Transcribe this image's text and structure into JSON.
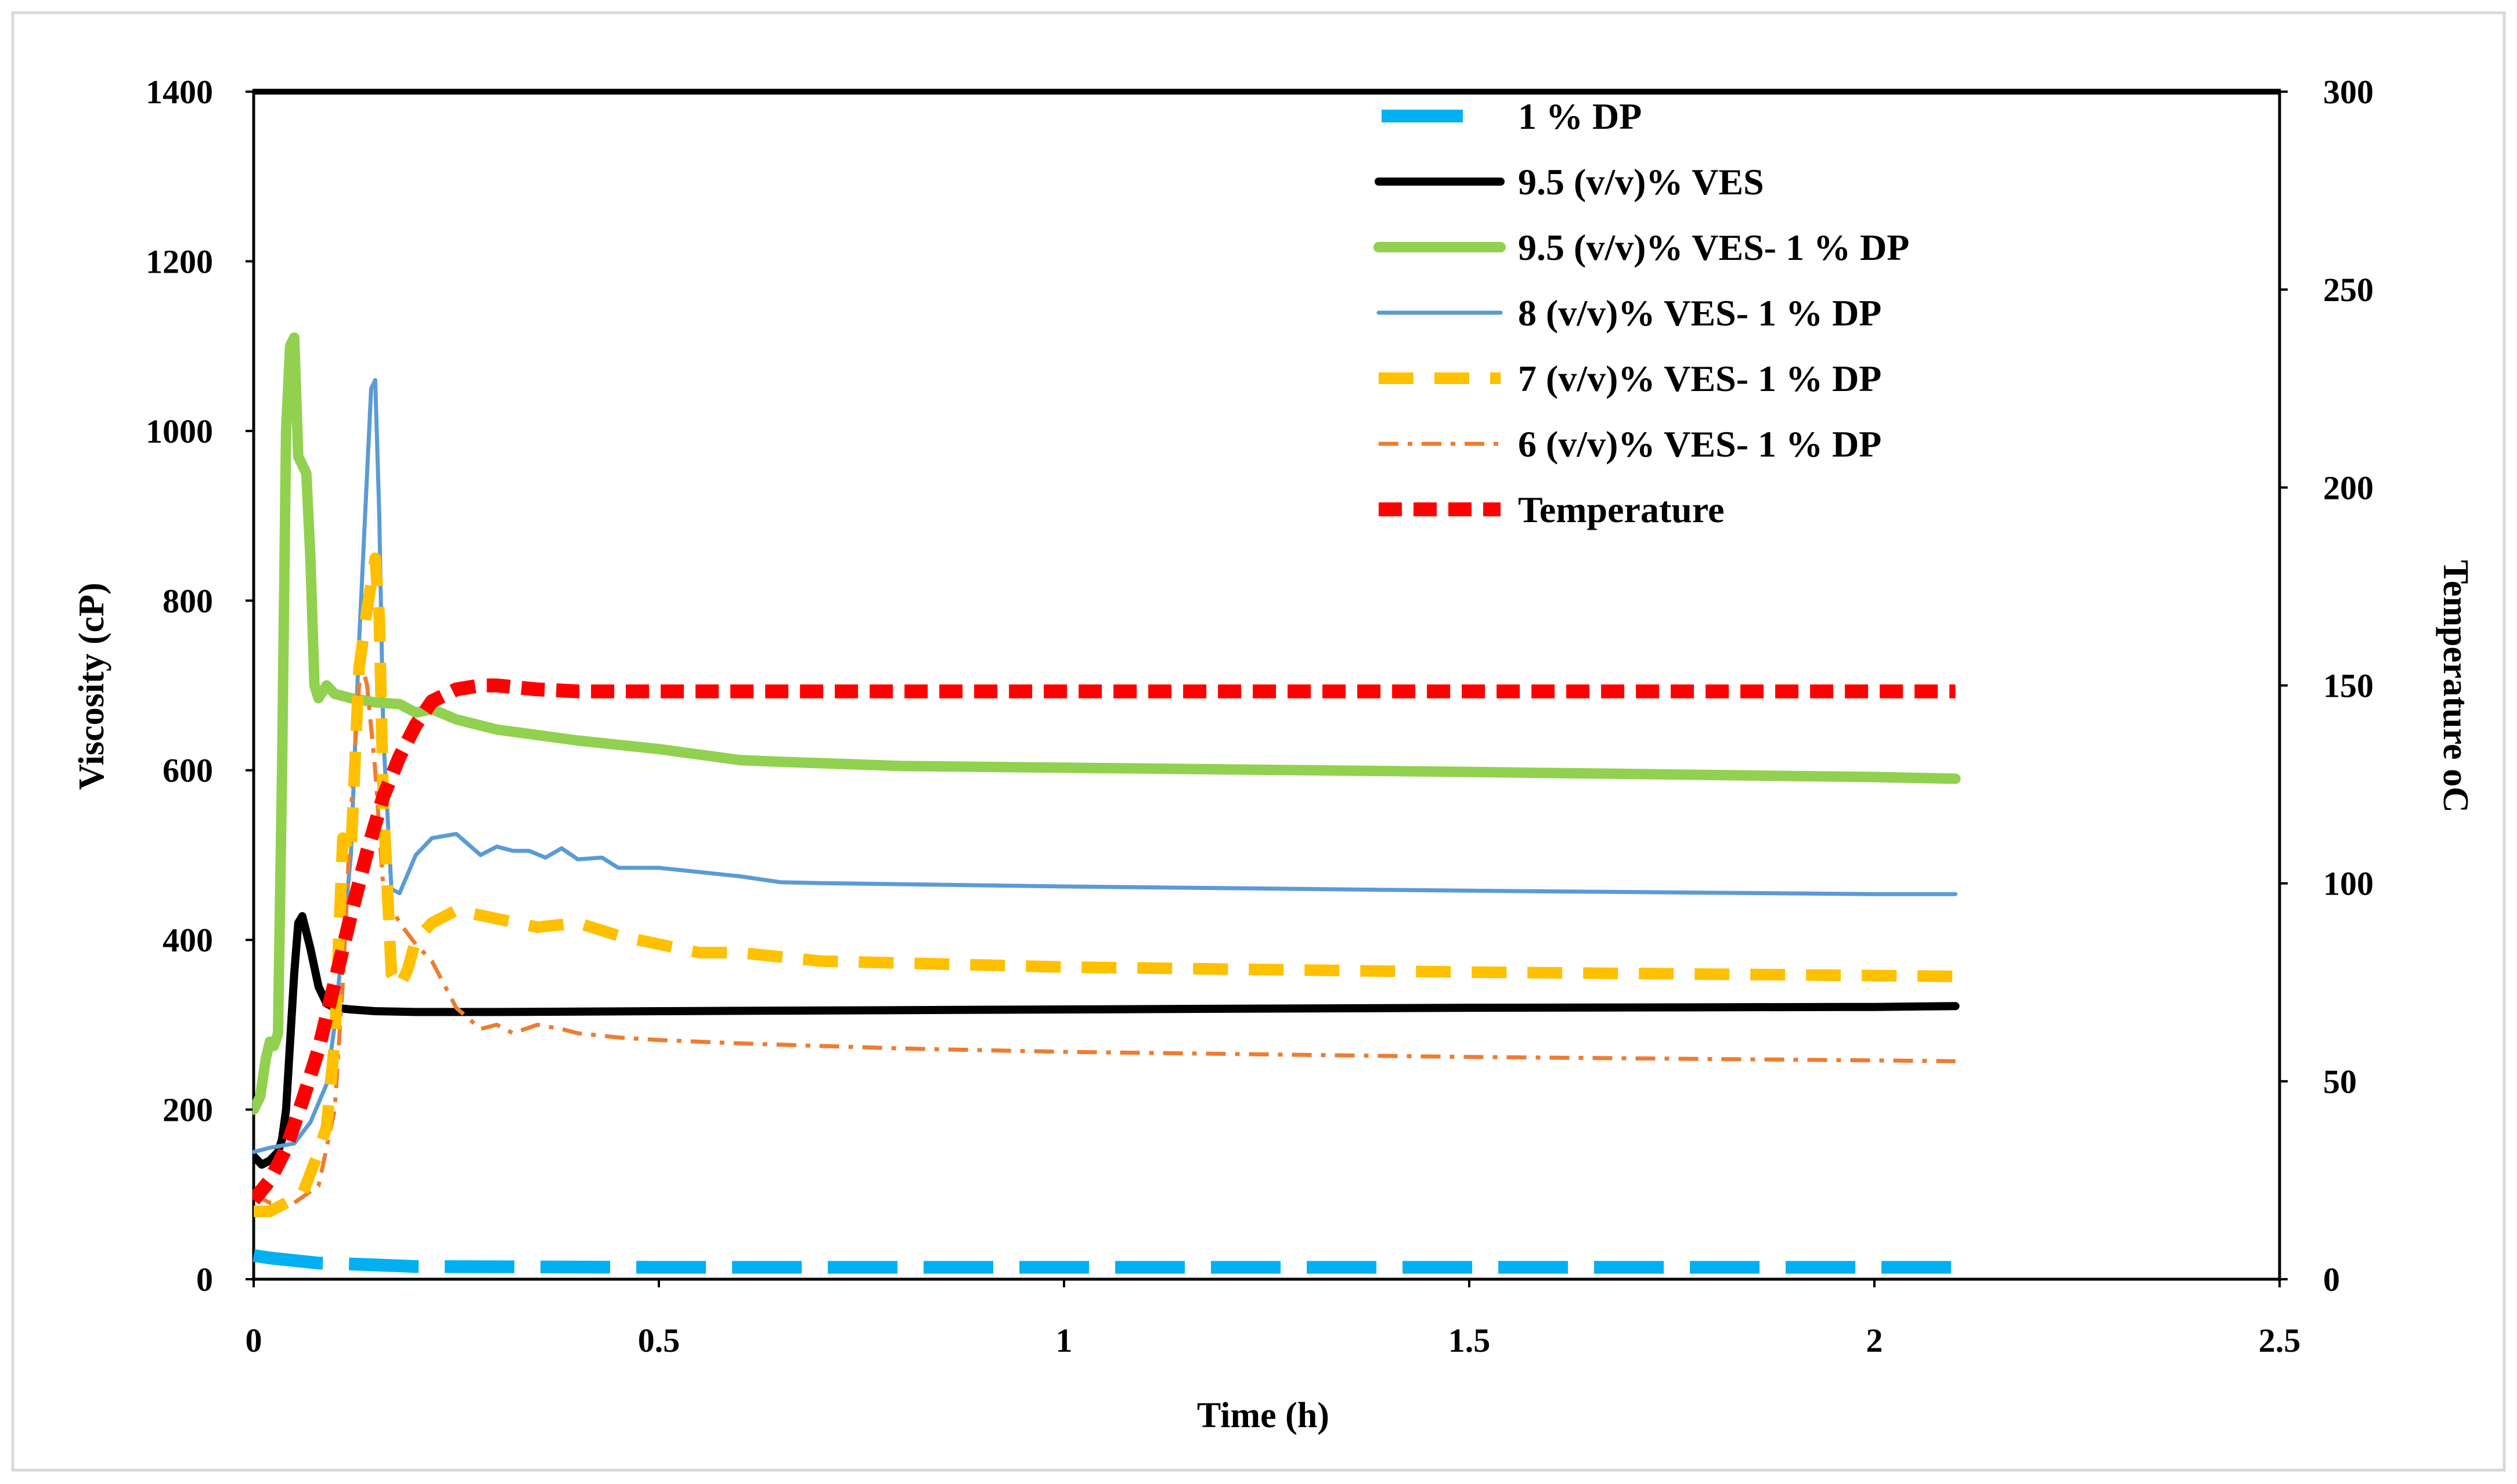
{
  "chart_data": {
    "type": "line",
    "title": "",
    "xlabel": "Time (h)",
    "ylabel": "Viscosity (cP)",
    "y2label": "Temperature oC",
    "xlim": [
      0,
      2.5
    ],
    "ylim": [
      0,
      1400
    ],
    "y2lim": [
      0,
      300
    ],
    "xticks": [
      "0",
      "0.5",
      "1",
      "1.5",
      "2",
      "2.5"
    ],
    "yticks": [
      "0",
      "200",
      "400",
      "600",
      "800",
      "1000",
      "1200",
      "1400"
    ],
    "y2ticks": [
      "0",
      "50",
      "100",
      "150",
      "200",
      "250",
      "300"
    ],
    "grid": false,
    "legend_position": "top-center",
    "series": [
      {
        "name": "1 % DP",
        "axis": "left",
        "color": "#00B0F0",
        "style": "long-dash",
        "x": [
          0,
          0.02,
          0.05,
          0.08,
          0.12,
          0.2,
          0.5,
          1.0,
          1.5,
          2.1
        ],
        "y": [
          28,
          25,
          22,
          19,
          18,
          15,
          14,
          14,
          14,
          14
        ]
      },
      {
        "name": "9.5 (v/v)% VES",
        "axis": "left",
        "color": "#000000",
        "style": "solid",
        "x": [
          0,
          0.01,
          0.02,
          0.03,
          0.035,
          0.04,
          0.045,
          0.05,
          0.055,
          0.06,
          0.07,
          0.08,
          0.09,
          0.1,
          0.12,
          0.15,
          0.2,
          0.3,
          0.5,
          1.0,
          1.5,
          2.0,
          2.1
        ],
        "y": [
          145,
          135,
          140,
          150,
          165,
          200,
          280,
          360,
          420,
          428,
          390,
          345,
          325,
          320,
          318,
          316,
          315,
          315,
          316,
          318,
          320,
          321,
          322
        ]
      },
      {
        "name": "9.5 (v/v)% VES- 1 % DP",
        "axis": "left",
        "color": "#92D050",
        "style": "solid",
        "x": [
          0,
          0.008,
          0.015,
          0.02,
          0.025,
          0.03,
          0.035,
          0.04,
          0.045,
          0.05,
          0.055,
          0.06,
          0.065,
          0.07,
          0.075,
          0.08,
          0.09,
          0.1,
          0.12,
          0.15,
          0.18,
          0.2,
          0.22,
          0.25,
          0.3,
          0.4,
          0.5,
          0.6,
          0.65,
          0.8,
          1.0,
          1.5,
          2.0,
          2.1
        ],
        "y": [
          200,
          215,
          260,
          280,
          275,
          290,
          600,
          1000,
          1100,
          1110,
          970,
          960,
          950,
          850,
          700,
          685,
          700,
          690,
          685,
          680,
          678,
          668,
          672,
          660,
          648,
          635,
          625,
          612,
          610,
          605,
          603,
          598,
          592,
          590
        ]
      },
      {
        "name": "8 (v/v)% VES- 1 % DP",
        "axis": "left",
        "color": "#5B9BD5",
        "style": "solid",
        "x": [
          0,
          0.02,
          0.05,
          0.07,
          0.09,
          0.1,
          0.12,
          0.13,
          0.14,
          0.145,
          0.15,
          0.155,
          0.16,
          0.17,
          0.18,
          0.2,
          0.22,
          0.25,
          0.28,
          0.3,
          0.32,
          0.34,
          0.36,
          0.38,
          0.4,
          0.43,
          0.45,
          0.5,
          0.55,
          0.6,
          0.65,
          0.7,
          1.0,
          1.5,
          2.0,
          2.1
        ],
        "y": [
          150,
          155,
          160,
          185,
          230,
          300,
          500,
          750,
          950,
          1050,
          1060,
          900,
          640,
          460,
          455,
          500,
          520,
          525,
          500,
          510,
          505,
          505,
          497,
          508,
          495,
          497,
          485,
          485,
          480,
          475,
          468,
          467,
          463,
          458,
          454,
          454
        ]
      },
      {
        "name": "7 (v/v)% VES- 1 % DP",
        "axis": "left",
        "color": "#FFC000",
        "style": "dash",
        "x": [
          0,
          0.02,
          0.04,
          0.06,
          0.08,
          0.09,
          0.1,
          0.11,
          0.12,
          0.13,
          0.14,
          0.145,
          0.15,
          0.155,
          0.16,
          0.17,
          0.18,
          0.19,
          0.2,
          0.22,
          0.25,
          0.3,
          0.35,
          0.4,
          0.45,
          0.5,
          0.55,
          0.6,
          0.7,
          1.0,
          1.5,
          2.0,
          2.1
        ],
        "y": [
          80,
          80,
          90,
          100,
          150,
          180,
          280,
          520,
          500,
          720,
          790,
          820,
          850,
          780,
          560,
          360,
          345,
          365,
          400,
          420,
          435,
          425,
          415,
          420,
          405,
          395,
          385,
          385,
          375,
          368,
          362,
          358,
          357
        ]
      },
      {
        "name": "6 (v/v)% VES- 1 % DP",
        "axis": "left",
        "color": "#ED7D31",
        "style": "dash-dot",
        "x": [
          0,
          0.02,
          0.05,
          0.08,
          0.1,
          0.11,
          0.12,
          0.13,
          0.135,
          0.14,
          0.15,
          0.16,
          0.17,
          0.18,
          0.2,
          0.22,
          0.25,
          0.28,
          0.3,
          0.32,
          0.35,
          0.38,
          0.4,
          0.45,
          0.5,
          0.6,
          0.8,
          1.0,
          1.5,
          2.0,
          2.1
        ],
        "y": [
          100,
          90,
          90,
          110,
          200,
          350,
          550,
          700,
          720,
          700,
          600,
          460,
          440,
          420,
          395,
          375,
          320,
          295,
          300,
          290,
          300,
          295,
          290,
          285,
          282,
          278,
          272,
          268,
          262,
          258,
          257
        ]
      },
      {
        "name": "Temperature",
        "axis": "right",
        "color": "#FF0000",
        "style": "short-dash",
        "x": [
          0,
          0.02,
          0.04,
          0.06,
          0.08,
          0.1,
          0.12,
          0.14,
          0.16,
          0.18,
          0.2,
          0.22,
          0.25,
          0.28,
          0.3,
          0.35,
          0.4,
          0.5,
          1.0,
          1.5,
          2.0,
          2.1
        ],
        "y": [
          20,
          25,
          33,
          45,
          58,
          75,
          92,
          108,
          122,
          132,
          140,
          146,
          149,
          150,
          150,
          149,
          148.5,
          148.5,
          148.5,
          148.5,
          148.5,
          148.5
        ]
      }
    ]
  }
}
